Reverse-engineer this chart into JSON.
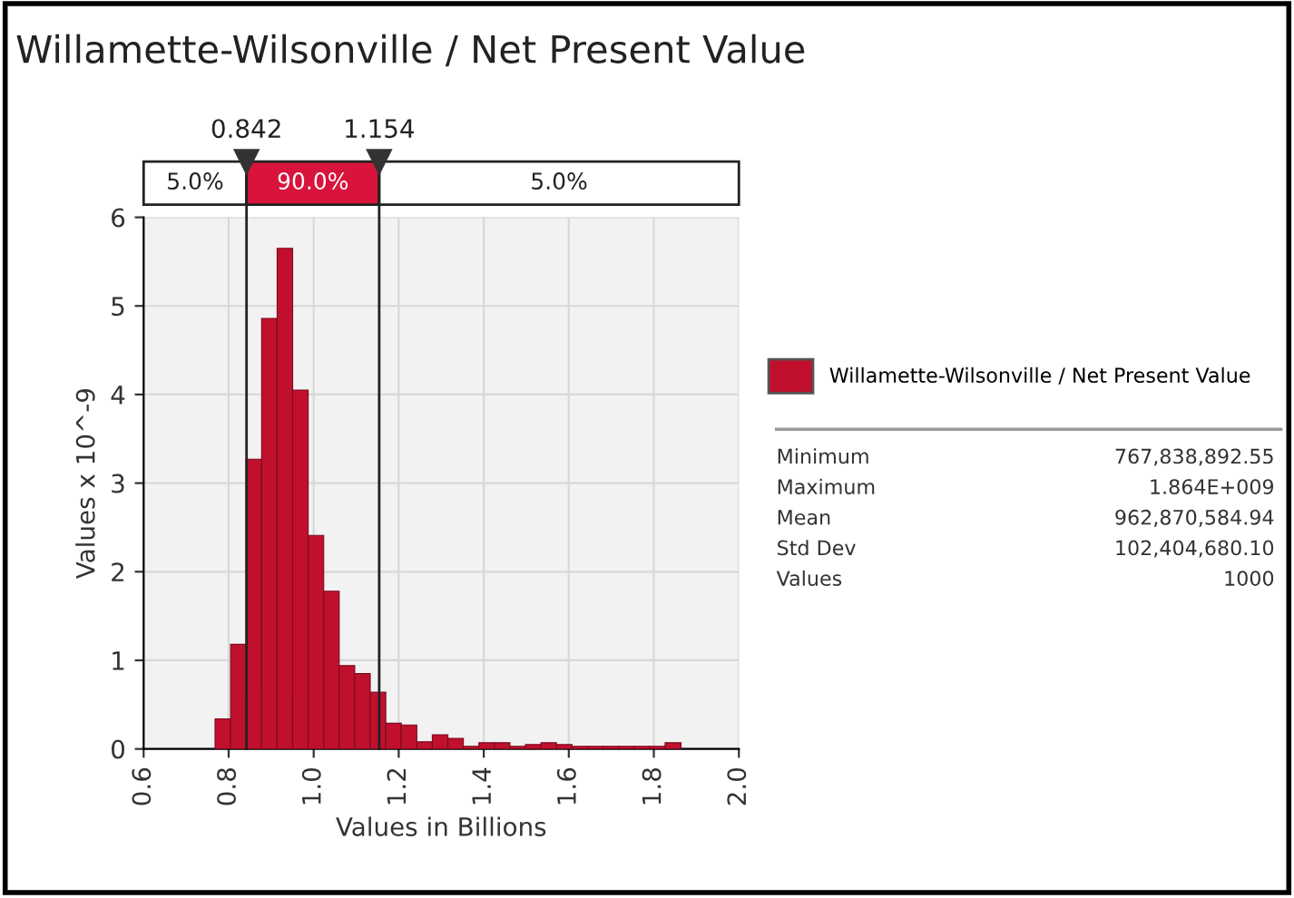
{
  "chart_data": {
    "type": "histogram",
    "title": "Willamette-Wilsonville / Net Present Value",
    "xlabel": "Values in Billions",
    "ylabel": "Values x 10^-9",
    "bins": [
      0.768,
      0.8045,
      0.841,
      0.8775,
      0.914,
      0.9505,
      0.987,
      1.0235,
      1.06,
      1.0965,
      1.133,
      1.1695,
      1.206,
      1.2425,
      1.279,
      1.3155,
      1.352,
      1.3885,
      1.425,
      1.4615,
      1.498,
      1.5345,
      1.571,
      1.6075,
      1.644,
      1.6805,
      1.717,
      1.7535,
      1.79,
      1.8265,
      1.864
    ],
    "series": [
      {
        "name": "Willamette-Wilsonville / Net Present Value",
        "color": "#c0102e",
        "values": [
          0.34,
          1.18,
          3.27,
          4.86,
          5.65,
          4.05,
          2.41,
          1.78,
          0.94,
          0.85,
          0.64,
          0.29,
          0.27,
          0.08,
          0.16,
          0.12,
          0.03,
          0.07,
          0.07,
          0.03,
          0.05,
          0.07,
          0.05,
          0.03,
          0.03,
          0.03,
          0.03,
          0.03,
          0.03,
          0.07
        ]
      }
    ],
    "xlim": [
      0.6,
      2.0
    ],
    "xticks": [
      {
        "value": 0.6,
        "label": "0.6"
      },
      {
        "value": 0.8,
        "label": "0.8"
      },
      {
        "value": 1.0,
        "label": "1.0"
      },
      {
        "value": 1.2,
        "label": "1.2"
      },
      {
        "value": 1.4,
        "label": "1.4"
      },
      {
        "value": 1.6,
        "label": "1.6"
      },
      {
        "value": 1.8,
        "label": "1.8"
      },
      {
        "value": 2.0,
        "label": "2.0"
      }
    ],
    "ylim": [
      0,
      6
    ],
    "yticks": [
      0,
      1,
      2,
      3,
      4,
      5,
      6
    ],
    "grid": true,
    "legend": "right",
    "ref_lines": [
      {
        "axis": "x",
        "value": 0.842,
        "label": "0.842",
        "color": "#222222"
      },
      {
        "axis": "x",
        "value": 1.154,
        "label": "1.154",
        "color": "#222222"
      }
    ],
    "annotations": [
      "5.0%",
      "90.0%",
      "5.0%",
      "Minimum",
      "767,838,892.55",
      "Maximum",
      "1.864E+009",
      "Mean",
      "962,870,584.94",
      "Std Dev",
      "102,404,680.10",
      "Values",
      "1000"
    ]
  }
}
